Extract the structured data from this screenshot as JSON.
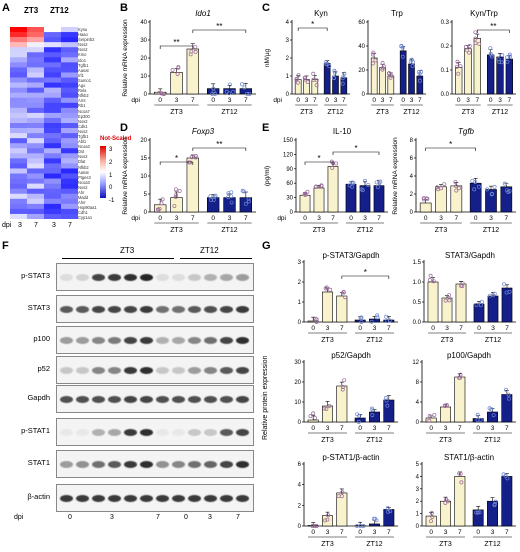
{
  "panels": {
    "A": {
      "letter": "A",
      "col_labels": [
        "ZT3",
        "ZT12"
      ],
      "genes": [
        "Kynu",
        "Haao",
        "Serpinb2",
        "Nos2",
        "Nos2",
        "Kmo",
        "Ido1",
        "Tgfb1",
        "Aanat",
        "Irf1",
        "Sumo1",
        "Ago",
        "Rela",
        "Nfkb2",
        "Arnt",
        "Rb1",
        "Ncoa7",
        "Ep300",
        "Nos2",
        "Cdk1",
        "Nos2",
        "Tgfb1",
        "Abl1",
        "Ncoa3",
        "Dst",
        "Nos2",
        "Dlat",
        "Nfkb2",
        "Aanat",
        "Ptges3",
        "Ncoa3",
        "Nos2",
        "Ahr",
        "Madd",
        "Ahrr",
        "Hsp90aa1",
        "Cdh1",
        "Cyp1a1"
      ],
      "legend_title": "Not-Scaled",
      "legend_ticks": [
        "3",
        "2",
        "1",
        "0",
        "-1"
      ],
      "x_prefix": "dpi",
      "x_ticks": [
        "3",
        "7",
        "3",
        "7"
      ]
    },
    "B": {
      "letter": "B",
      "title": "Ido1",
      "ylabel": "Relative mRNA expression",
      "y_ticks": [
        "0",
        "10",
        "20",
        "30",
        "40"
      ],
      "x_prefix": "dpi",
      "x_ticks": [
        "0",
        "3",
        "7",
        "0",
        "3",
        "7"
      ],
      "groups": [
        "ZT3",
        "ZT12"
      ],
      "sig": [
        "**",
        "**"
      ]
    },
    "C": {
      "letter": "C",
      "ylabel": "nM/µg",
      "sub": [
        {
          "title": "Kyn",
          "y_ticks": [
            "0",
            "1",
            "2",
            "3",
            "4"
          ]
        },
        {
          "title": "Trp",
          "y_ticks": [
            "0",
            "20",
            "40",
            "60"
          ]
        },
        {
          "title": "Kyn/Trp",
          "y_ticks": [
            "0.0",
            "0.1",
            "0.2",
            "0.3"
          ]
        }
      ],
      "x_prefix": "dpi",
      "x_ticks": [
        "0",
        "3",
        "7",
        "0",
        "3",
        "7"
      ],
      "groups": [
        "ZT3",
        "ZT12"
      ],
      "sig": [
        "*",
        "**"
      ]
    },
    "D": {
      "letter": "D",
      "title": "Foxp3",
      "ylabel": "Relative mRNA expression",
      "y_ticks": [
        "0",
        "5",
        "10",
        "15",
        "20"
      ],
      "x_prefix": "dpi",
      "x_ticks": [
        "0",
        "3",
        "7",
        "0",
        "3",
        "7"
      ],
      "groups": [
        "ZT3",
        "ZT12"
      ],
      "sig": [
        "*",
        "**"
      ]
    },
    "E": {
      "letter": "E",
      "sub": [
        {
          "title": "IL-10",
          "ylabel": "(pg/ml)",
          "y_ticks": [
            "0",
            "30",
            "60",
            "90",
            "120",
            "150"
          ]
        },
        {
          "title": "Tgfb",
          "ylabel": "Relative mRNA expression",
          "y_ticks": [
            "0",
            "2",
            "4",
            "6",
            "8"
          ]
        }
      ],
      "x_prefix": "dpi",
      "x_ticks": [
        "0",
        "3",
        "7",
        "0",
        "3",
        "7"
      ],
      "groups": [
        "ZT3",
        "ZT12"
      ],
      "sig": [
        "*",
        "*",
        "*"
      ]
    },
    "F": {
      "letter": "F",
      "groups": [
        "ZT3",
        "ZT12"
      ],
      "rows": [
        "p-STAT3",
        "STAT3",
        "p100",
        "p52",
        "Gapdh",
        "p-STAT1",
        "STAT1",
        "β-actin"
      ],
      "x_prefix": "dpi",
      "x_ticks": [
        "0",
        "3",
        "7",
        "0",
        "3",
        "7"
      ]
    },
    "G": {
      "letter": "G",
      "ylabel": "Relative protein expression",
      "sub": [
        {
          "title": "p-STAT3/Gapdh",
          "y_ticks": [
            "0",
            "1",
            "2",
            "3"
          ]
        },
        {
          "title": "STAT3/Gapdh",
          "y_ticks": [
            "0.0",
            "0.5",
            "1.0",
            "1.5"
          ]
        },
        {
          "title": "p52/Gapdh",
          "y_ticks": [
            "0",
            "10",
            "20",
            "30"
          ]
        },
        {
          "title": "p100/Gapdh",
          "y_ticks": [
            "0",
            "4",
            "8",
            "12"
          ]
        },
        {
          "title": "p-STAT1/β-actin",
          "y_ticks": [
            "0",
            "2",
            "4",
            "6"
          ]
        },
        {
          "title": "STAT1/β-actin",
          "y_ticks": [
            "0",
            "1",
            "2",
            "3",
            "4",
            "5"
          ]
        }
      ],
      "x_ticks": [
        "0",
        "3",
        "7",
        "0",
        "3",
        "7"
      ],
      "groups": [
        "ZT3",
        "ZT12"
      ],
      "sig": [
        "*"
      ]
    }
  },
  "chart_data": [
    {
      "type": "bar",
      "panel": "B",
      "title": "Ido1",
      "ylabel": "Relative mRNA expression",
      "categories": [
        "ZT3 0",
        "ZT3 3",
        "ZT3 7",
        "ZT12 0",
        "ZT12 3",
        "ZT12 7"
      ],
      "values": [
        1,
        12,
        25,
        3,
        3,
        3
      ],
      "ylim": [
        0,
        40
      ]
    },
    {
      "type": "bar",
      "panel": "C",
      "title": "Kyn",
      "ylabel": "nM/µg",
      "categories": [
        "ZT3 0",
        "ZT3 3",
        "ZT3 7",
        "ZT12 0",
        "ZT12 3",
        "ZT12 7"
      ],
      "values": [
        0.8,
        0.8,
        0.8,
        1.7,
        1.0,
        0.9
      ],
      "ylim": [
        0,
        4
      ]
    },
    {
      "type": "bar",
      "panel": "C",
      "title": "Trp",
      "categories": [
        "ZT3 0",
        "ZT3 3",
        "ZT3 7",
        "ZT12 0",
        "ZT12 3",
        "ZT12 7"
      ],
      "values": [
        30,
        22,
        15,
        36,
        25,
        15
      ],
      "ylim": [
        0,
        60
      ]
    },
    {
      "type": "bar",
      "panel": "C",
      "title": "Kyn/Trp",
      "categories": [
        "ZT3 0",
        "ZT3 3",
        "ZT3 7",
        "ZT12 0",
        "ZT12 3",
        "ZT12 7"
      ],
      "values": [
        0.13,
        0.22,
        0.27,
        0.19,
        0.18,
        0.17
      ],
      "ylim": [
        0,
        0.35
      ]
    },
    {
      "type": "bar",
      "panel": "D",
      "title": "Foxp3",
      "ylabel": "Relative mRNA expression",
      "categories": [
        "ZT3 0",
        "ZT3 3",
        "ZT3 7",
        "ZT12 0",
        "ZT12 3",
        "ZT12 7"
      ],
      "values": [
        2,
        4,
        15,
        4,
        4,
        4
      ],
      "ylim": [
        0,
        20
      ]
    },
    {
      "type": "bar",
      "panel": "E",
      "title": "IL-10",
      "ylabel": "(pg/ml)",
      "categories": [
        "ZT3 0",
        "ZT3 3",
        "ZT3 7",
        "ZT12 0",
        "ZT12 3",
        "ZT12 7"
      ],
      "values": [
        35,
        50,
        95,
        58,
        55,
        55
      ],
      "ylim": [
        0,
        150
      ]
    },
    {
      "type": "bar",
      "panel": "E",
      "title": "Tgfb",
      "ylabel": "Relative mRNA expression",
      "categories": [
        "ZT3 0",
        "ZT3 3",
        "ZT3 7",
        "ZT12 0",
        "ZT12 3",
        "ZT12 7"
      ],
      "values": [
        1,
        2.8,
        2.9,
        3.2,
        2.5,
        2.8
      ],
      "ylim": [
        0,
        8
      ]
    },
    {
      "type": "bar",
      "panel": "G",
      "title": "p-STAT3/Gapdh",
      "ylabel": "Relative protein expression",
      "categories": [
        "ZT3 0",
        "ZT3 3",
        "ZT3 7",
        "ZT12 0",
        "ZT12 3",
        "ZT12 7"
      ],
      "values": [
        0.05,
        1.5,
        1.3,
        0.1,
        0.15,
        0.1
      ],
      "ylim": [
        0,
        3
      ]
    },
    {
      "type": "bar",
      "panel": "G",
      "title": "STAT3/Gapdh",
      "categories": [
        "ZT3 0",
        "ZT3 3",
        "ZT3 7",
        "ZT12 0",
        "ZT12 3",
        "ZT12 7"
      ],
      "values": [
        1.0,
        0.6,
        0.95,
        0.45,
        0.65,
        0.85
      ],
      "ylim": [
        0,
        1.5
      ]
    },
    {
      "type": "bar",
      "panel": "G",
      "title": "p52/Gapdh",
      "categories": [
        "ZT3 0",
        "ZT3 3",
        "ZT3 7",
        "ZT12 0",
        "ZT12 3",
        "ZT12 7"
      ],
      "values": [
        1,
        8,
        18,
        2,
        5,
        11
      ],
      "ylim": [
        0,
        30
      ]
    },
    {
      "type": "bar",
      "panel": "G",
      "title": "p100/Gapdh",
      "categories": [
        "ZT3 0",
        "ZT3 3",
        "ZT3 7",
        "ZT12 0",
        "ZT12 3",
        "ZT12 7"
      ],
      "values": [
        0.8,
        3,
        9,
        0.7,
        2,
        5.5
      ],
      "ylim": [
        0,
        12
      ]
    },
    {
      "type": "bar",
      "panel": "G",
      "title": "p-STAT1/β-actin",
      "categories": [
        "ZT3 0",
        "ZT3 3",
        "ZT3 7",
        "ZT12 0",
        "ZT12 3",
        "ZT12 7"
      ],
      "values": [
        0.05,
        1.0,
        3.2,
        0.05,
        0.2,
        1.6
      ],
      "ylim": [
        0,
        6
      ]
    },
    {
      "type": "bar",
      "panel": "G",
      "title": "STAT1/β-actin",
      "categories": [
        "ZT3 0",
        "ZT3 3",
        "ZT3 7",
        "ZT12 0",
        "ZT12 3",
        "ZT12 7"
      ],
      "values": [
        0.8,
        2.0,
        4.0,
        1.3,
        2.0,
        4.0
      ],
      "ylim": [
        0,
        5
      ]
    }
  ],
  "colors": {
    "zt3": "#f8f3cc",
    "zt12": "#141f8a",
    "dot_zt3": "#9a6a9a",
    "dot_zt12": "#6e86d0",
    "sig": "#000000"
  }
}
